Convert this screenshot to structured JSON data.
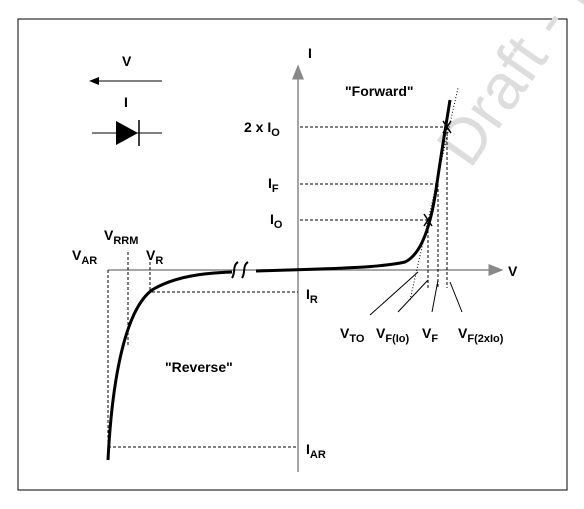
{
  "legend": {
    "voltage": "V",
    "current": "I"
  },
  "axes": {
    "y": "I",
    "x": "V"
  },
  "regions": {
    "forward": "\"Forward\"",
    "reverse": "\"Reverse\""
  },
  "watermark": "Draft - D",
  "labels": {
    "two_io": {
      "main": "2 x I",
      "sub": "O"
    },
    "if": {
      "main": "I",
      "sub": "F"
    },
    "io": {
      "main": "I",
      "sub": "O"
    },
    "ir": {
      "main": "I",
      "sub": "R"
    },
    "iar": {
      "main": "I",
      "sub": "AR"
    },
    "var": {
      "main": "V",
      "sub": "AR"
    },
    "vrrm": {
      "main": "V",
      "sub": "RRM"
    },
    "vr": {
      "main": "V",
      "sub": "R"
    },
    "vto": {
      "main": "V",
      "sub": "TO"
    },
    "vfio": {
      "main": "V",
      "sub": "F(Io)"
    },
    "vf": {
      "main": "V",
      "sub": "F"
    },
    "vf2io": {
      "main": "V",
      "sub": "F(2xIo)"
    }
  }
}
